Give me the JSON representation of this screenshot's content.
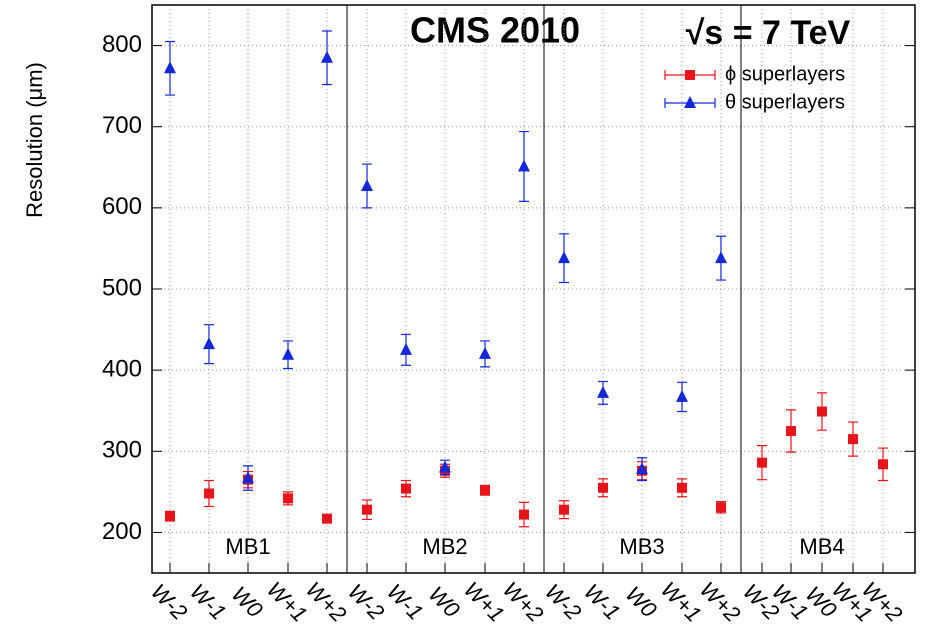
{
  "chart_data": {
    "type": "scatter",
    "title": "CMS 2010",
    "annotation": "√s = 7 TeV",
    "y_label": "Resolution (μm)",
    "categories": [
      "W-2",
      "W-1",
      "W0",
      "W+1",
      "W+2",
      "W-2",
      "W-1",
      "W0",
      "W+1",
      "W+2",
      "W-2",
      "W-1",
      "W0",
      "W+1",
      "W+2",
      "W-2",
      "W-1",
      "W0",
      "W+1",
      "W+2"
    ],
    "group_labels": [
      "MB1",
      "MB2",
      "MB3",
      "MB4"
    ],
    "series": [
      {
        "name": "ϕ superlayers",
        "color": "#e8141c",
        "marker": "square",
        "values": [
          220,
          248,
          265,
          242,
          217,
          228,
          254,
          276,
          252,
          222,
          228,
          255,
          276,
          255,
          231,
          286,
          325,
          349,
          315,
          284
        ],
        "errors": [
          6,
          16,
          10,
          8,
          5,
          12,
          10,
          8,
          6,
          15,
          11,
          11,
          11,
          11,
          7,
          21,
          26,
          23,
          21,
          20
        ]
      },
      {
        "name": "θ superlayers",
        "color": "#1428d8",
        "marker": "triangle",
        "values": [
          772,
          432,
          267,
          419,
          785,
          627,
          425,
          280,
          420,
          651,
          538,
          372,
          278,
          367,
          538,
          null,
          null,
          null,
          null,
          null
        ],
        "errors": [
          33,
          24,
          15,
          17,
          33,
          27,
          19,
          9,
          16,
          43,
          30,
          14,
          14,
          18,
          27,
          null,
          null,
          null,
          null,
          null
        ]
      }
    ],
    "ylim": [
      150,
      850
    ],
    "yticks": [
      200,
      300,
      400,
      500,
      600,
      700,
      800
    ],
    "grid": true,
    "legend": "upper right"
  }
}
